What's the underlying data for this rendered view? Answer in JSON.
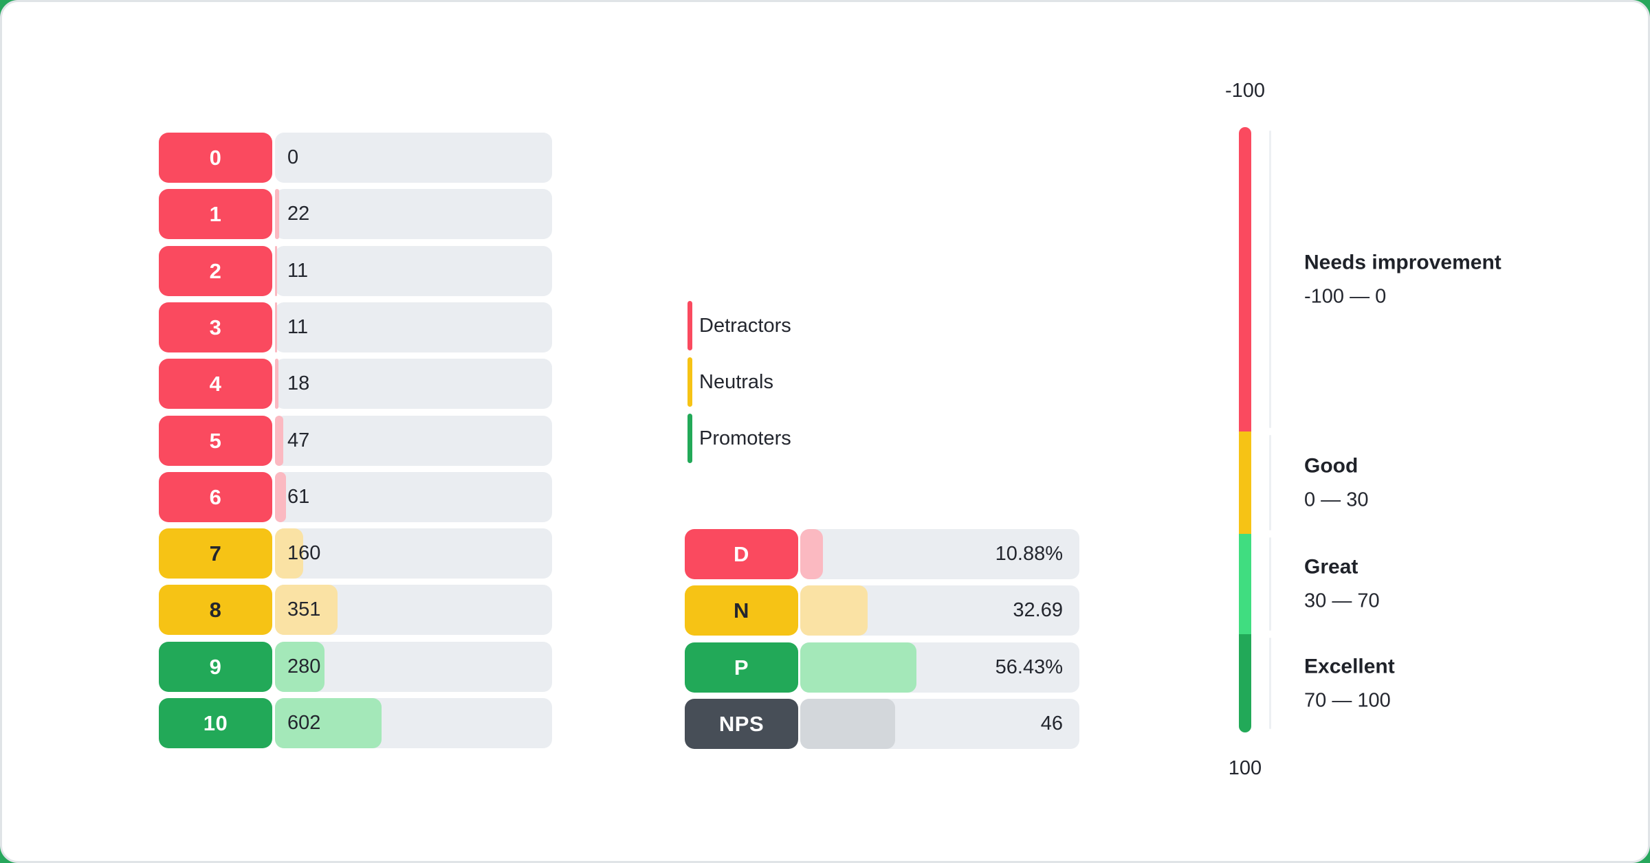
{
  "colors": {
    "detractor": "#FA4A5F",
    "detractor_light": "#FBB9C1",
    "neutral": "#F6C315",
    "neutral_light": "#FAE2A4",
    "promoter": "#22A958",
    "promoter_light": "#A4E8B9",
    "great": "#40DD80",
    "nps": "#474E57",
    "nps_light": "#D3D7DB",
    "track": "#EAEDF1"
  },
  "legend": {
    "items": [
      {
        "label": "Detractors",
        "color_key": "detractor"
      },
      {
        "label": "Neutrals",
        "color_key": "neutral"
      },
      {
        "label": "Promoters",
        "color_key": "promoter"
      }
    ]
  },
  "chart_data": [
    {
      "type": "bar",
      "orientation": "horizontal",
      "title": "",
      "categories": [
        "0",
        "1",
        "2",
        "3",
        "4",
        "5",
        "6",
        "7",
        "8",
        "9",
        "10"
      ],
      "values": [
        0,
        22,
        11,
        11,
        18,
        47,
        61,
        160,
        351,
        280,
        602
      ],
      "groups": [
        "detractor",
        "detractor",
        "detractor",
        "detractor",
        "detractor",
        "detractor",
        "detractor",
        "neutral",
        "neutral",
        "promoter",
        "promoter"
      ]
    },
    {
      "type": "bar",
      "orientation": "horizontal",
      "title": "",
      "categories": [
        "D",
        "N",
        "P",
        "NPS"
      ],
      "values": [
        10.88,
        32.69,
        56.43,
        46
      ],
      "value_labels": [
        "10.88%",
        "32.69",
        "56.43%",
        "46"
      ],
      "groups": [
        "detractor",
        "neutral",
        "promoter",
        "nps"
      ]
    },
    {
      "type": "gauge",
      "orientation": "vertical",
      "min": -100,
      "max": 100,
      "top_label": "-100",
      "bottom_label": "100",
      "zones": [
        {
          "title": "Needs improvement",
          "range_label": "-100 — 0",
          "from": -100,
          "to": 0,
          "color_key": "detractor"
        },
        {
          "title": "Good",
          "range_label": "0 — 30",
          "from": 0,
          "to": 30,
          "color_key": "neutral"
        },
        {
          "title": "Great",
          "range_label": "30 — 70",
          "from": 30,
          "to": 70,
          "color_key": "great"
        },
        {
          "title": "Excellent",
          "range_label": "70 — 100",
          "from": 70,
          "to": 100,
          "color_key": "promoter"
        }
      ]
    }
  ]
}
